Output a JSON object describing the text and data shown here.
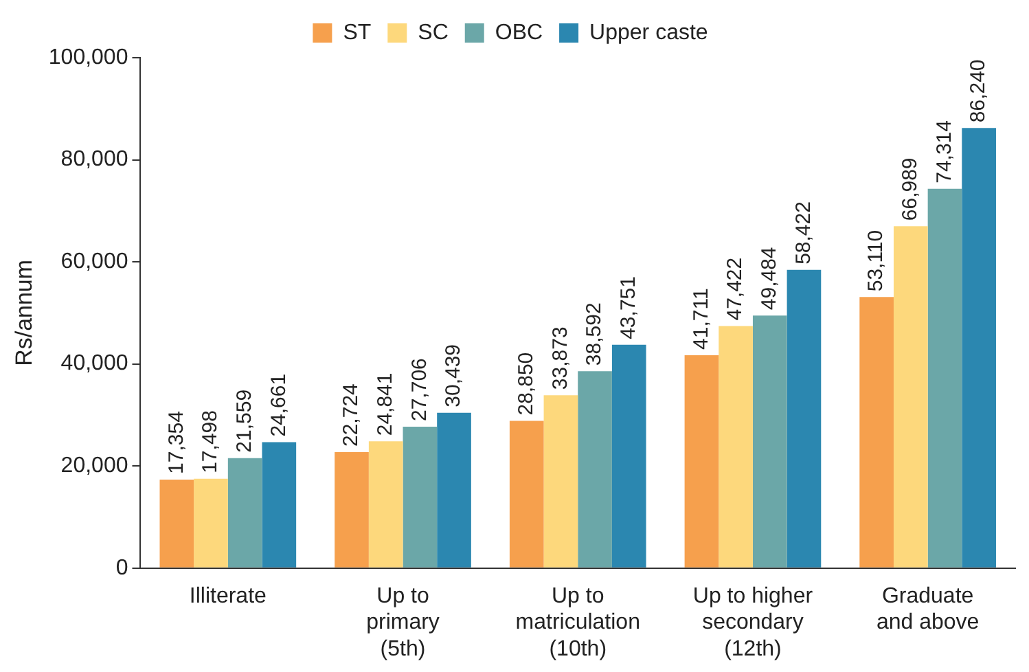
{
  "chart_data": {
    "type": "bar",
    "ylabel": "Rs/annum",
    "categories": [
      "Illiterate",
      "Up to\nprimary\n(5th)",
      "Up to\nmatriculation\n(10th)",
      "Up to higher\nsecondary\n(12th)",
      "Graduate\nand above"
    ],
    "series": [
      {
        "name": "ST",
        "color": "#f6a04d",
        "values": [
          17354,
          22724,
          28850,
          41711,
          53110
        ],
        "value_labels": [
          "17,354",
          "22,724",
          "28,850",
          "41,711",
          "53,110"
        ]
      },
      {
        "name": "SC",
        "color": "#fdd87c",
        "values": [
          17498,
          24841,
          33873,
          47422,
          66989
        ],
        "value_labels": [
          "17,498",
          "24,841",
          "33,873",
          "47,422",
          "66,989"
        ]
      },
      {
        "name": "OBC",
        "color": "#6ba7a8",
        "values": [
          21559,
          27706,
          38592,
          49484,
          74314
        ],
        "value_labels": [
          "21,559",
          "27,706",
          "38,592",
          "49,484",
          "74,314"
        ]
      },
      {
        "name": "Upper caste",
        "color": "#2b87b0",
        "values": [
          24661,
          30439,
          43751,
          58422,
          86240
        ],
        "value_labels": [
          "24,661",
          "30,439",
          "43,751",
          "58,422",
          "86,240"
        ]
      }
    ],
    "ylim": [
      0,
      100000
    ],
    "yticks": [
      0,
      {
        "value": 20000,
        "label": "20,000"
      },
      {
        "value": 40000,
        "label": "40,000"
      },
      {
        "value": 60000,
        "label": "60,000"
      },
      {
        "value": 80000,
        "label": "80,000"
      },
      {
        "value": 100000,
        "label": "100,000"
      }
    ],
    "grid": false,
    "legend": "top"
  }
}
